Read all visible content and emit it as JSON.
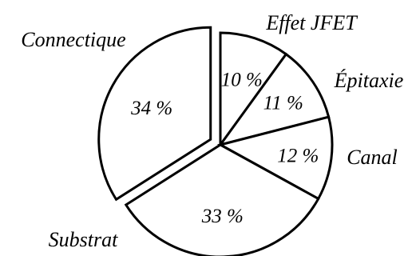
{
  "chart_data": {
    "type": "pie",
    "categories": [
      "Effet JFET",
      "Épitaxie",
      "Canal",
      "Substrat",
      "Connectique"
    ],
    "values": [
      10,
      11,
      12,
      33,
      34
    ],
    "value_labels": [
      "10 %",
      "11 %",
      "12 %",
      "33 %",
      "34 %"
    ],
    "exploded": [
      "Connectique"
    ],
    "title": "",
    "colors": {
      "fill": "#ffffff",
      "stroke": "#000000"
    }
  }
}
